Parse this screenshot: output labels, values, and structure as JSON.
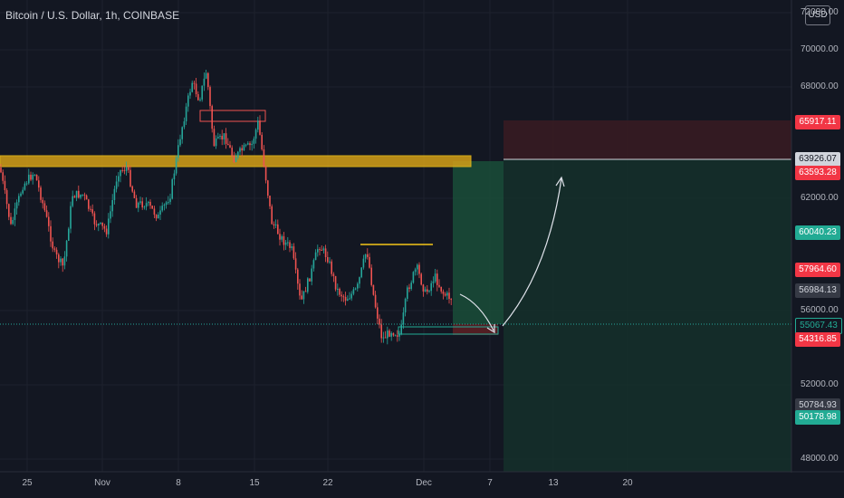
{
  "title": "Bitcoin / U.S. Dollar, 1h, COINBASE",
  "currency": "USD",
  "colors": {
    "up": "#26a69a",
    "down": "#ef5350",
    "background": "#131722",
    "resistance_zone": "#f5c518"
  },
  "y_axis": {
    "ticks": [
      "72000.00",
      "70000.00",
      "68000.00",
      "62000.00",
      "56000.00",
      "52000.00",
      "48000.00"
    ]
  },
  "x_axis": {
    "ticks": [
      "25",
      "Nov",
      "8",
      "15",
      "22",
      "Dec",
      "7",
      "13",
      "20"
    ]
  },
  "price_tags": [
    {
      "label": "65917.11",
      "bg": "#f23645",
      "fg": "#ffffff",
      "key": "stop"
    },
    {
      "label": "63926.07",
      "bg": "#d1d4dc",
      "fg": "#131722",
      "key": "target-line"
    },
    {
      "label": "63593.28",
      "bg": "#f23645",
      "fg": "#ffffff",
      "key": "hidden"
    },
    {
      "label": "60040.23",
      "bg": "#22ab94",
      "fg": "#ffffff",
      "key": "level-1"
    },
    {
      "label": "57964.60",
      "bg": "#f23645",
      "fg": "#ffffff",
      "key": "level-2"
    },
    {
      "label": "56984.13",
      "bg": "#363a45",
      "fg": "#d1d4dc",
      "key": "last"
    },
    {
      "label": "55067.43",
      "bg": "#131722",
      "fg": "#22ab94",
      "key": "entry"
    },
    {
      "label": "54316.85",
      "bg": "#f23645",
      "fg": "#ffffff",
      "key": "level-3"
    },
    {
      "label": "50784.93",
      "bg": "#363a45",
      "fg": "#d1d4dc",
      "key": "level-4"
    },
    {
      "label": "50178.98",
      "bg": "#22ab94",
      "fg": "#ffffff",
      "key": "take-profit"
    }
  ]
}
